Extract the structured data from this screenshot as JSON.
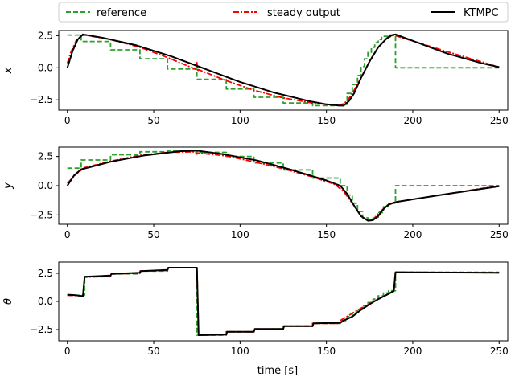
{
  "chart_data": {
    "type": "line",
    "xlabel": "time [s]",
    "xlim": [
      -5,
      255
    ],
    "xticks": [
      0,
      50,
      100,
      150,
      200,
      250
    ],
    "legend": {
      "placement": "top",
      "entries": [
        {
          "name": "reference",
          "style": "dashed",
          "color": "#2ca02c"
        },
        {
          "name": "steady output",
          "style": "dashdot",
          "color": "#ff0000"
        },
        {
          "name": "KTMPC",
          "style": "solid",
          "color": "#000000"
        }
      ]
    },
    "panels": [
      {
        "ylabel": "x",
        "ylim": [
          -3.3,
          2.9
        ],
        "yticks": [
          -2.5,
          0.0,
          2.5
        ],
        "yticklabels": [
          "−2.5",
          "0.0",
          "2.5"
        ],
        "series": [
          {
            "name": "reference",
            "step": true,
            "x": [
              0,
              8,
              8,
              25,
              25,
              42,
              42,
              58,
              58,
              75,
              75,
              92,
              92,
              108,
              108,
              125,
              125,
              142,
              142,
              158,
              158,
              162,
              162,
              165,
              165,
              168,
              168,
              170,
              170,
              172,
              172,
              174,
              174,
              176,
              176,
              178,
              178,
              180,
              180,
              182,
              182,
              186,
              186,
              190,
              190,
              250
            ],
            "y": [
              2.55,
              2.55,
              2.05,
              2.05,
              1.4,
              1.4,
              0.7,
              0.7,
              -0.1,
              -0.1,
              -0.9,
              -0.9,
              -1.65,
              -1.65,
              -2.3,
              -2.3,
              -2.75,
              -2.75,
              -2.95,
              -2.95,
              -2.85,
              -2.85,
              -2.0,
              -2.0,
              -1.3,
              -1.3,
              -0.6,
              -0.6,
              0.1,
              0.1,
              0.7,
              0.7,
              1.2,
              1.2,
              1.6,
              1.6,
              1.95,
              1.95,
              2.2,
              2.2,
              2.45,
              2.45,
              2.55,
              2.55,
              0.0,
              0.0
            ]
          },
          {
            "name": "steady output",
            "x": [
              0,
              2,
              5,
              8,
              10,
              25,
              42,
              58,
              74,
              75,
              75.5,
              76,
              92,
              108,
              125,
              142,
              158,
              162,
              165,
              170,
              175,
              180,
              185,
              188,
              190,
              220,
              250
            ],
            "y": [
              0.35,
              1.2,
              2.1,
              2.5,
              2.55,
              2.2,
              1.6,
              0.8,
              -0.1,
              0.4,
              -0.3,
              -0.15,
              -1.0,
              -1.75,
              -2.35,
              -2.75,
              -2.95,
              -2.6,
              -2.0,
              -0.8,
              0.5,
              1.6,
              2.3,
              2.5,
              2.5,
              1.25,
              0.05
            ]
          },
          {
            "name": "KTMPC",
            "x": [
              0,
              3,
              6,
              9,
              20,
              40,
              60,
              80,
              100,
              120,
              140,
              150,
              158,
              160,
              163,
              166,
              170,
              175,
              180,
              185,
              188,
              190,
              200,
              220,
              240,
              250
            ],
            "y": [
              0.0,
              1.3,
              2.2,
              2.6,
              2.35,
              1.75,
              0.9,
              -0.1,
              -1.1,
              -1.95,
              -2.6,
              -2.85,
              -2.95,
              -2.95,
              -2.6,
              -2.0,
              -0.8,
              0.5,
              1.6,
              2.3,
              2.55,
              2.6,
              2.1,
              1.1,
              0.35,
              0.05
            ]
          }
        ]
      },
      {
        "ylabel": "y",
        "ylim": [
          -3.3,
          3.3
        ],
        "yticks": [
          -2.5,
          0.0,
          2.5
        ],
        "yticklabels": [
          "−2.5",
          "0.0",
          "2.5"
        ],
        "series": [
          {
            "name": "reference",
            "step": true,
            "x": [
              0,
              8,
              8,
              25,
              25,
              42,
              42,
              58,
              58,
              75,
              75,
              92,
              92,
              108,
              108,
              125,
              125,
              142,
              142,
              158,
              158,
              162,
              162,
              165,
              165,
              168,
              168,
              171,
              171,
              174,
              174,
              177,
              177,
              180,
              180,
              183,
              183,
              186,
              186,
              190,
              190,
              250
            ],
            "y": [
              1.5,
              1.5,
              2.2,
              2.2,
              2.65,
              2.65,
              2.9,
              2.9,
              3.0,
              3.0,
              2.85,
              2.85,
              2.5,
              2.5,
              1.95,
              1.95,
              1.35,
              1.35,
              0.65,
              0.65,
              0.0,
              0.0,
              -0.8,
              -0.8,
              -1.5,
              -1.5,
              -2.2,
              -2.2,
              -2.75,
              -2.75,
              -2.95,
              -2.95,
              -2.7,
              -2.7,
              -2.3,
              -2.3,
              -1.8,
              -1.8,
              -1.5,
              -1.5,
              0.0,
              0.0
            ]
          },
          {
            "name": "steady output",
            "x": [
              0,
              5,
              10,
              25,
              42,
              58,
              74,
              75,
              76,
              92,
              108,
              125,
              142,
              155,
              160,
              165,
              170,
              174,
              177,
              180,
              185,
              190,
              220,
              250
            ],
            "y": [
              0.2,
              1.0,
              1.55,
              2.1,
              2.6,
              2.85,
              2.9,
              2.7,
              2.8,
              2.55,
              2.05,
              1.45,
              0.75,
              0.1,
              -0.5,
              -1.5,
              -2.6,
              -3.0,
              -2.9,
              -2.4,
              -1.7,
              -1.4,
              -0.7,
              0.0
            ]
          },
          {
            "name": "KTMPC",
            "x": [
              0,
              4,
              8,
              12,
              25,
              45,
              65,
              75,
              90,
              110,
              130,
              150,
              158,
              162,
              166,
              170,
              174,
              177,
              180,
              183,
              186,
              190,
              220,
              250
            ],
            "y": [
              0.0,
              0.9,
              1.4,
              1.55,
              2.05,
              2.6,
              2.95,
              3.0,
              2.7,
              2.15,
              1.35,
              0.45,
              0.0,
              -0.7,
              -1.7,
              -2.6,
              -3.0,
              -2.95,
              -2.6,
              -2.0,
              -1.6,
              -1.4,
              -0.7,
              -0.05
            ]
          }
        ]
      },
      {
        "ylabel": "θ",
        "ylim": [
          -3.5,
          3.5
        ],
        "yticks": [
          -2.5,
          0.0,
          2.5
        ],
        "yticklabels": [
          "−2.5",
          "0.0",
          "2.5"
        ],
        "series": [
          {
            "name": "reference",
            "step": true,
            "x": [
              0,
              10,
              10,
              25,
              25,
              42,
              42,
              58,
              58,
              75,
              75,
              92,
              92,
              108,
              108,
              125,
              125,
              142,
              142,
              158,
              158,
              162,
              162,
              165,
              165,
              168,
              168,
              171,
              171,
              174,
              174,
              177,
              177,
              180,
              180,
              183,
              183,
              186,
              186,
              190,
              190,
              250
            ],
            "y": [
              0.55,
              0.55,
              2.2,
              2.2,
              2.45,
              2.45,
              2.7,
              2.7,
              3.0,
              3.0,
              -3.0,
              -3.0,
              -2.7,
              -2.7,
              -2.45,
              -2.45,
              -2.2,
              -2.2,
              -1.95,
              -1.95,
              -1.7,
              -1.7,
              -1.35,
              -1.35,
              -1.0,
              -1.0,
              -0.7,
              -0.7,
              -0.4,
              -0.4,
              -0.1,
              -0.1,
              0.2,
              0.2,
              0.5,
              0.5,
              0.75,
              0.75,
              0.95,
              0.95,
              2.6,
              2.6
            ]
          },
          {
            "name": "steady output",
            "x": [
              0,
              9,
              10,
              25,
              25,
              42,
              42,
              58,
              58,
              75,
              76,
              92,
              92,
              108,
              108,
              125,
              125,
              142,
              142,
              158,
              158,
              170,
              180,
              189,
              190,
              250
            ],
            "y": [
              0.55,
              0.5,
              2.15,
              2.25,
              2.45,
              2.5,
              2.7,
              2.75,
              3.0,
              3.0,
              -2.95,
              -2.95,
              -2.7,
              -2.7,
              -2.45,
              -2.45,
              -2.2,
              -2.2,
              -1.95,
              -1.95,
              -1.7,
              -0.6,
              0.2,
              0.9,
              2.6,
              2.55
            ]
          },
          {
            "name": "KTMPC",
            "x": [
              0,
              5,
              9,
              10,
              25,
              25.5,
              42,
              42.5,
              58,
              58.5,
              75,
              76,
              92,
              92.5,
              108,
              108.5,
              125,
              125.5,
              142,
              142.5,
              158,
              160,
              165,
              170,
              175,
              180,
              185,
              189,
              190,
              250
            ],
            "y": [
              0.6,
              0.55,
              0.45,
              2.2,
              2.3,
              2.45,
              2.55,
              2.7,
              2.8,
              3.0,
              3.0,
              -3.0,
              -2.95,
              -2.7,
              -2.7,
              -2.45,
              -2.45,
              -2.2,
              -2.2,
              -1.95,
              -1.9,
              -1.7,
              -1.35,
              -0.75,
              -0.25,
              0.2,
              0.6,
              0.95,
              2.6,
              2.55
            ]
          }
        ]
      }
    ]
  }
}
